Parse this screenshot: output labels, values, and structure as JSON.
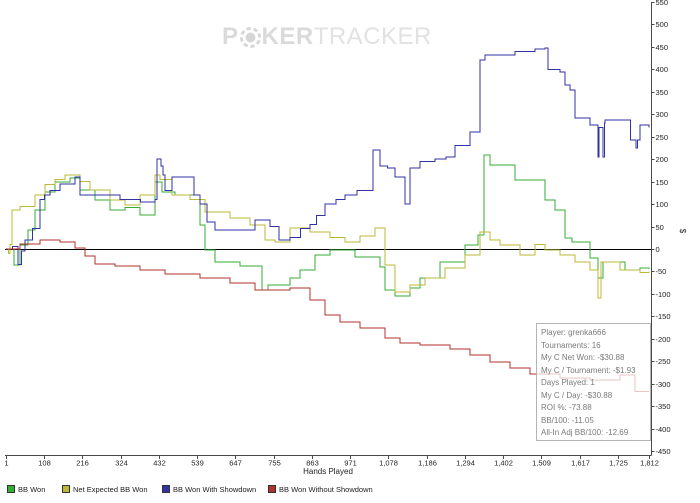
{
  "watermark": {
    "text_start": "P",
    "text_mid": "KER",
    "text_end": "TRACKER"
  },
  "icons": {
    "watermark_chip": "poker-chip-icon"
  },
  "colors": {
    "zero_line": "#000000",
    "axis": "#4a4a4a",
    "watermark": "#dadada"
  },
  "chart_data": {
    "type": "line",
    "title": "",
    "xlabel": "Hands Played",
    "ylabel": "$",
    "xlim": [
      1,
      1812
    ],
    "ylim": [
      -450,
      550
    ],
    "grid": false,
    "legend_position": "bottom",
    "x_ticks": [
      1,
      108,
      216,
      324,
      432,
      539,
      647,
      755,
      863,
      971,
      1078,
      1186,
      1294,
      1402,
      1509,
      1617,
      1725,
      1812
    ],
    "x_tick_labels": [
      "1",
      "108",
      "216",
      "324",
      "432",
      "539",
      "647",
      "755",
      "863",
      "971",
      "1,078",
      "1,186",
      "1,294",
      "1,402",
      "1,509",
      "1,617",
      "1,725",
      "1,812"
    ],
    "y_ticks": [
      550,
      500,
      450,
      400,
      350,
      300,
      250,
      200,
      150,
      100,
      50,
      0,
      -50,
      -100,
      -150,
      -200,
      -250,
      -300,
      -350,
      -400,
      -450
    ],
    "y_tick_labels": [
      "550",
      "500",
      "450",
      "400",
      "350",
      "300",
      "250",
      "200",
      "150",
      "100",
      "50",
      "0",
      "-50",
      "-100",
      "-150",
      "-200",
      "-250",
      "-300",
      "-350",
      "-400",
      "-450"
    ],
    "series": [
      {
        "name": "BB Won",
        "color": "#35ad35",
        "points": [
          [
            1,
            0
          ],
          [
            24,
            -36
          ],
          [
            40,
            9
          ],
          [
            63,
            42
          ],
          [
            83,
            87
          ],
          [
            111,
            127
          ],
          [
            139,
            149
          ],
          [
            181,
            158
          ],
          [
            209,
            131
          ],
          [
            252,
            109
          ],
          [
            294,
            87
          ],
          [
            336,
            92
          ],
          [
            378,
            76
          ],
          [
            421,
            149
          ],
          [
            440,
            127
          ],
          [
            477,
            120
          ],
          [
            547,
            53
          ],
          [
            561,
            -2
          ],
          [
            590,
            -29
          ],
          [
            660,
            -38
          ],
          [
            722,
            -91
          ],
          [
            739,
            -80
          ],
          [
            801,
            -65
          ],
          [
            829,
            -47
          ],
          [
            871,
            -13
          ],
          [
            913,
            -2
          ],
          [
            984,
            -18
          ],
          [
            1054,
            -40
          ],
          [
            1068,
            -91
          ],
          [
            1097,
            -105
          ],
          [
            1139,
            -87
          ],
          [
            1167,
            -65
          ],
          [
            1223,
            -29
          ],
          [
            1294,
            9
          ],
          [
            1331,
            31
          ],
          [
            1347,
            209
          ],
          [
            1364,
            187
          ],
          [
            1434,
            154
          ],
          [
            1519,
            109
          ],
          [
            1547,
            87
          ],
          [
            1575,
            24
          ],
          [
            1595,
            16
          ],
          [
            1646,
            -20
          ],
          [
            1668,
            -65
          ],
          [
            1682,
            -29
          ],
          [
            1744,
            -47
          ],
          [
            1787,
            -42
          ],
          [
            1812,
            -45
          ]
        ]
      },
      {
        "name": "Net Expected BB Won",
        "color": "#bcb935",
        "points": [
          [
            1,
            0
          ],
          [
            8,
            -10
          ],
          [
            12,
            10
          ],
          [
            18,
            87
          ],
          [
            40,
            95
          ],
          [
            83,
            120
          ],
          [
            111,
            143
          ],
          [
            139,
            155
          ],
          [
            167,
            165
          ],
          [
            209,
            150
          ],
          [
            238,
            131
          ],
          [
            294,
            109
          ],
          [
            336,
            98
          ],
          [
            378,
            120
          ],
          [
            421,
            165
          ],
          [
            435,
            155
          ],
          [
            469,
            120
          ],
          [
            519,
            110
          ],
          [
            561,
            82
          ],
          [
            632,
            69
          ],
          [
            688,
            53
          ],
          [
            730,
            20
          ],
          [
            759,
            15
          ],
          [
            801,
            47
          ],
          [
            857,
            38
          ],
          [
            913,
            25
          ],
          [
            956,
            16
          ],
          [
            998,
            29
          ],
          [
            1040,
            47
          ],
          [
            1068,
            -36
          ],
          [
            1097,
            -96
          ],
          [
            1139,
            -80
          ],
          [
            1181,
            -65
          ],
          [
            1238,
            -42
          ],
          [
            1294,
            -13
          ],
          [
            1336,
            38
          ],
          [
            1364,
            20
          ],
          [
            1393,
            9
          ],
          [
            1449,
            -13
          ],
          [
            1491,
            10
          ],
          [
            1519,
            -2
          ],
          [
            1561,
            -13
          ],
          [
            1604,
            -29
          ],
          [
            1646,
            -47
          ],
          [
            1668,
            -109
          ],
          [
            1677,
            -29
          ],
          [
            1730,
            -47
          ],
          [
            1787,
            -53
          ],
          [
            1812,
            -50
          ]
        ]
      },
      {
        "name": "BB Won With Showdown",
        "color": "#3232a6",
        "points": [
          [
            1,
            0
          ],
          [
            20,
            5
          ],
          [
            35,
            -35
          ],
          [
            45,
            -5
          ],
          [
            55,
            20
          ],
          [
            75,
            45
          ],
          [
            97,
            110
          ],
          [
            110,
            120
          ],
          [
            125,
            130
          ],
          [
            153,
            145
          ],
          [
            195,
            160
          ],
          [
            209,
            120
          ],
          [
            266,
            120
          ],
          [
            322,
            110
          ],
          [
            350,
            110
          ],
          [
            380,
            105
          ],
          [
            421,
            110
          ],
          [
            426,
            200
          ],
          [
            437,
            185
          ],
          [
            443,
            165
          ],
          [
            449,
            130
          ],
          [
            469,
            160
          ],
          [
            519,
            160
          ],
          [
            530,
            120
          ],
          [
            547,
            100
          ],
          [
            567,
            60
          ],
          [
            590,
            42
          ],
          [
            674,
            42
          ],
          [
            702,
            65
          ],
          [
            745,
            50
          ],
          [
            770,
            20
          ],
          [
            801,
            25
          ],
          [
            830,
            45
          ],
          [
            857,
            55
          ],
          [
            875,
            75
          ],
          [
            899,
            100
          ],
          [
            930,
            110
          ],
          [
            956,
            120
          ],
          [
            990,
            130
          ],
          [
            1026,
            130
          ],
          [
            1035,
            220
          ],
          [
            1054,
            185
          ],
          [
            1075,
            180
          ],
          [
            1097,
            160
          ],
          [
            1125,
            100
          ],
          [
            1139,
            180
          ],
          [
            1167,
            195
          ],
          [
            1209,
            200
          ],
          [
            1240,
            205
          ],
          [
            1266,
            230
          ],
          [
            1308,
            260
          ],
          [
            1336,
            421
          ],
          [
            1350,
            432
          ],
          [
            1435,
            440
          ],
          [
            1491,
            445
          ],
          [
            1519,
            448
          ],
          [
            1528,
            400
          ],
          [
            1561,
            394
          ],
          [
            1575,
            365
          ],
          [
            1590,
            354
          ],
          [
            1604,
            292
          ],
          [
            1646,
            276
          ],
          [
            1668,
            205
          ],
          [
            1671,
            270
          ],
          [
            1682,
            205
          ],
          [
            1686,
            280
          ],
          [
            1688,
            287
          ],
          [
            1744,
            287
          ],
          [
            1760,
            243
          ],
          [
            1775,
            225
          ],
          [
            1780,
            243
          ],
          [
            1787,
            276
          ],
          [
            1812,
            270
          ]
        ]
      },
      {
        "name": "BB Won Without Showdown",
        "color": "#b0302e",
        "points": [
          [
            1,
            0
          ],
          [
            40,
            11
          ],
          [
            97,
            20
          ],
          [
            153,
            16
          ],
          [
            195,
            2
          ],
          [
            223,
            -16
          ],
          [
            252,
            -33
          ],
          [
            308,
            -38
          ],
          [
            378,
            -47
          ],
          [
            449,
            -56
          ],
          [
            547,
            -65
          ],
          [
            632,
            -76
          ],
          [
            702,
            -91
          ],
          [
            801,
            -87
          ],
          [
            857,
            -114
          ],
          [
            899,
            -147
          ],
          [
            942,
            -163
          ],
          [
            998,
            -176
          ],
          [
            1068,
            -198
          ],
          [
            1111,
            -209
          ],
          [
            1167,
            -214
          ],
          [
            1251,
            -223
          ],
          [
            1308,
            -236
          ],
          [
            1364,
            -252
          ],
          [
            1420,
            -265
          ],
          [
            1477,
            -278
          ],
          [
            1561,
            -287
          ],
          [
            1646,
            -292
          ],
          [
            1730,
            -281
          ],
          [
            1773,
            -318
          ],
          [
            1812,
            -318
          ]
        ]
      }
    ]
  },
  "stats_box": {
    "lines": [
      "Player: grenka666",
      "Tournaments: 16",
      "My C Net Won: -$30.88",
      "My C / Tournament: -$1.93",
      "Days Played: 1",
      "My C / Day: -$30.88",
      "ROI %: -73.88",
      "BB/100: -11.05",
      "All-In Adj BB/100: -12.69"
    ]
  }
}
